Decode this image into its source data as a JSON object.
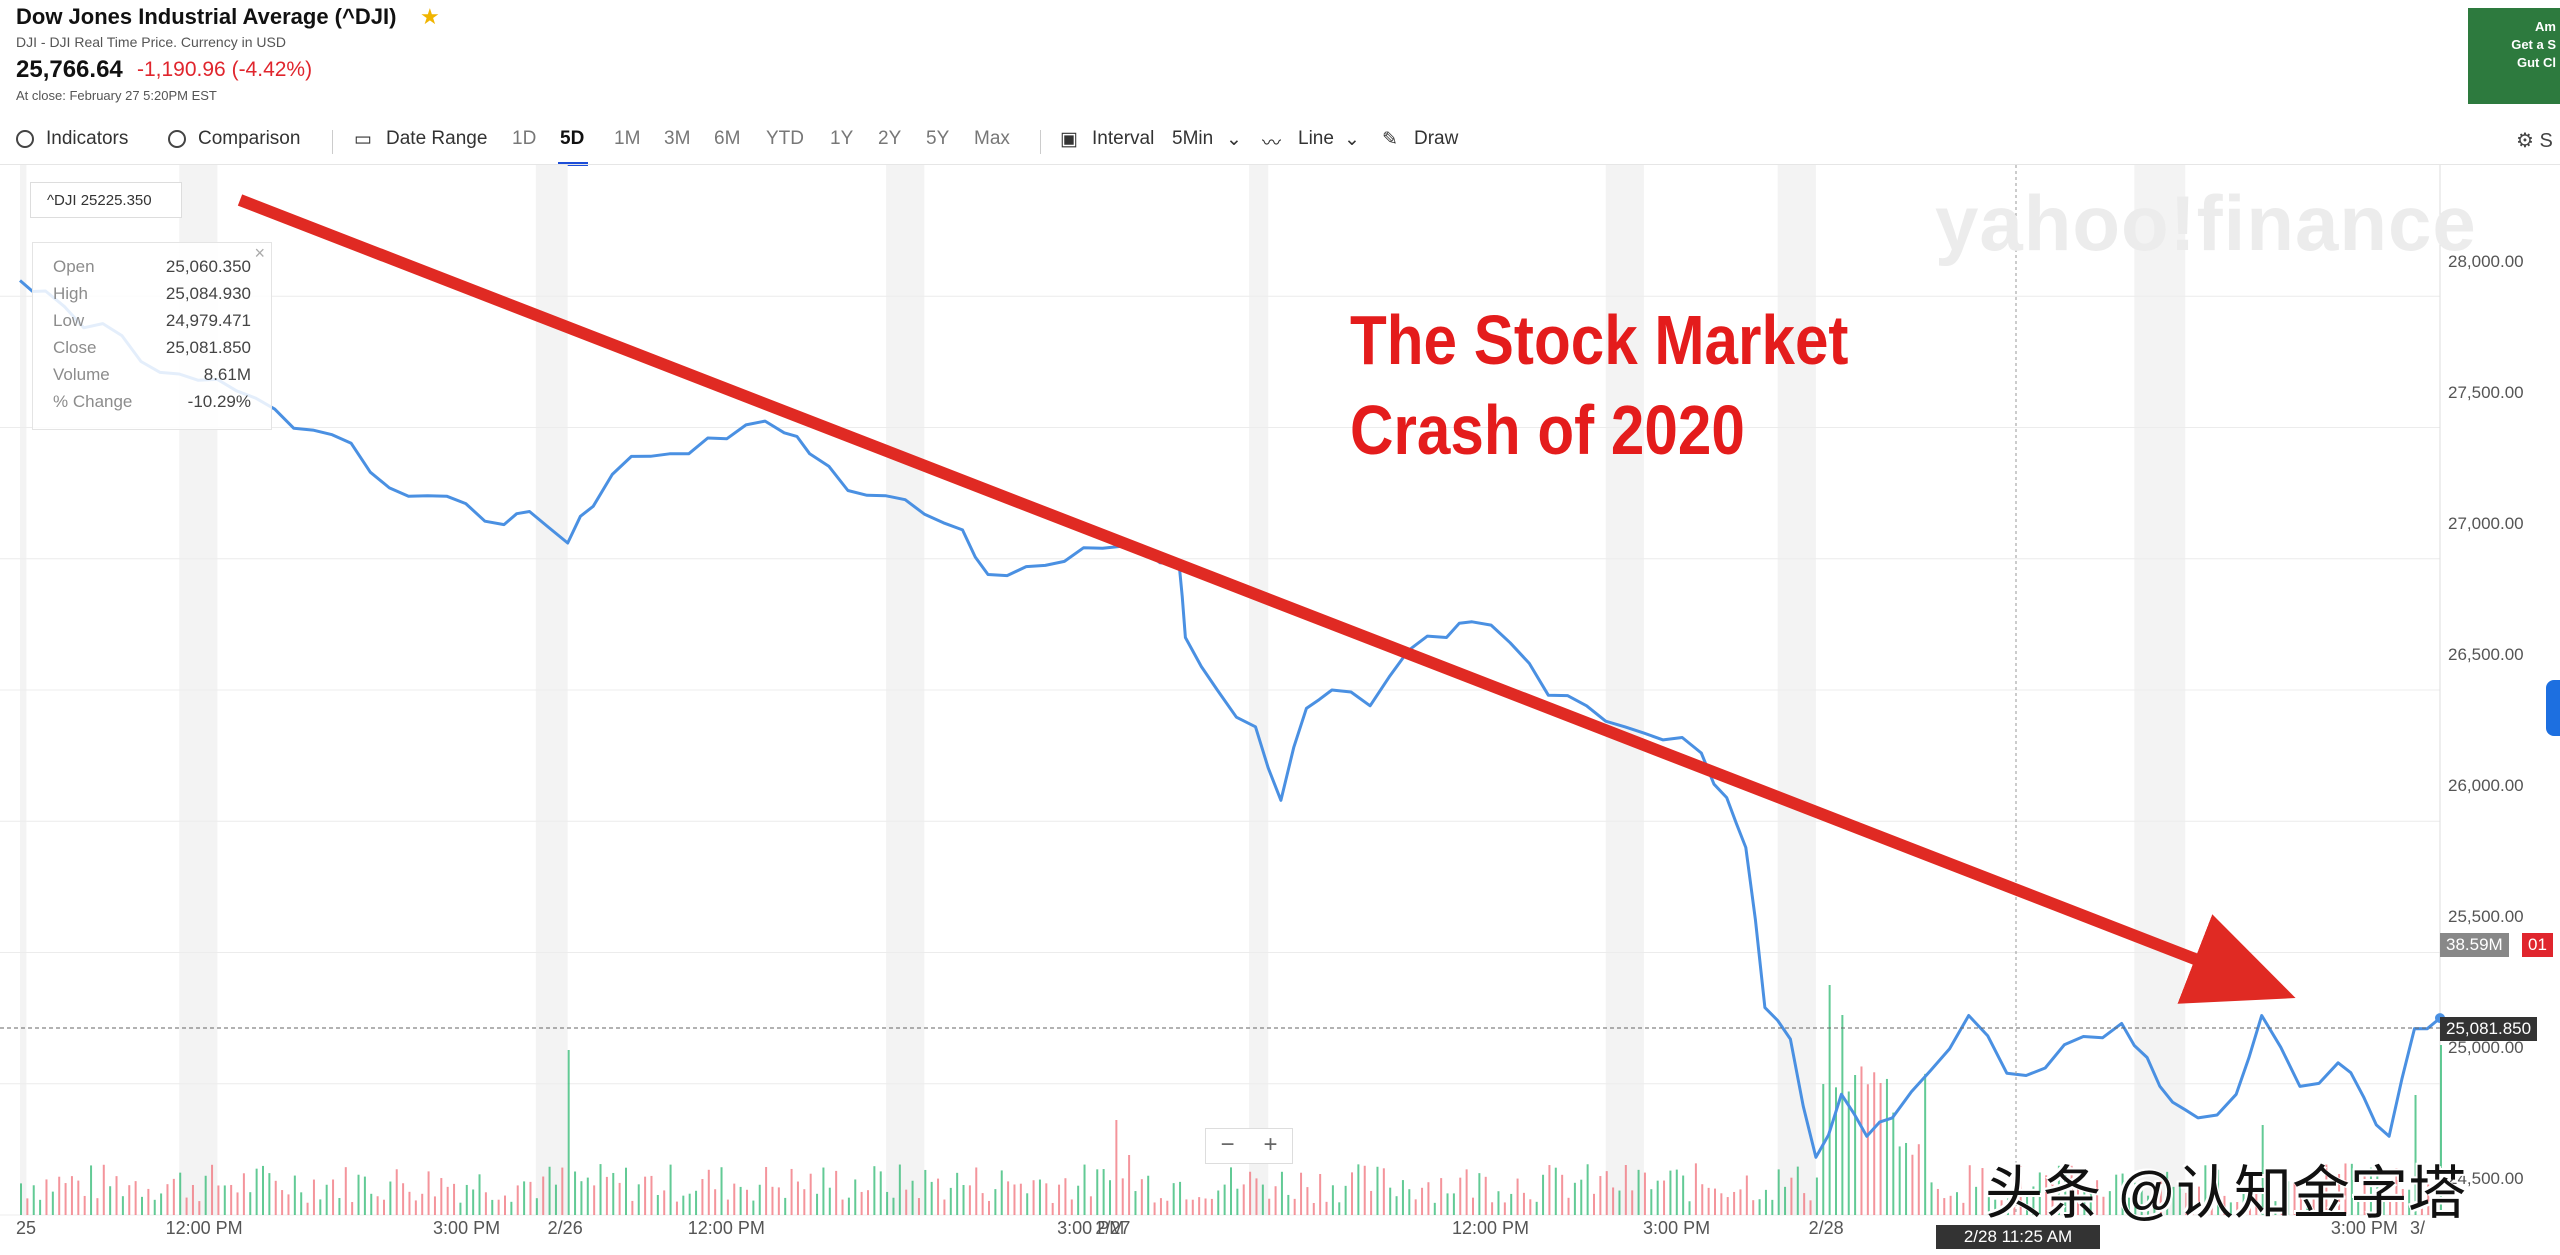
{
  "header": {
    "title": "Dow Jones Industrial Average (^DJI)",
    "subtitle": "DJI - DJI Real Time Price. Currency in USD",
    "price": "25,766.64",
    "change": "-1,190.96 (-4.42%)",
    "close_note": "At close: February 27 5:20PM EST"
  },
  "ad": {
    "line1": "Am",
    "line2": "Get a S",
    "line3": "Gut Cl"
  },
  "toolbar": {
    "indicators": "Indicators",
    "comparison": "Comparison",
    "date_range": "Date Range",
    "ranges": [
      "1D",
      "5D",
      "1M",
      "3M",
      "6M",
      "YTD",
      "1Y",
      "2Y",
      "5Y",
      "Max"
    ],
    "active_range": "5D",
    "interval_label": "Interval",
    "interval_value": "5Min",
    "line": "Line",
    "draw": "Draw",
    "settings": "S"
  },
  "legend": {
    "label": "^DJI 25225.350"
  },
  "ohlc": {
    "rows": [
      {
        "k": "Open",
        "v": "25,060.350"
      },
      {
        "k": "High",
        "v": "25,084.930"
      },
      {
        "k": "Low",
        "v": "24,979.471"
      },
      {
        "k": "Close",
        "v": "25,081.850"
      },
      {
        "k": "Volume",
        "v": "8.61M"
      },
      {
        "k": "% Change",
        "v": "-10.29%"
      }
    ]
  },
  "watermark": "yahoo!finance",
  "annotation": {
    "line1": "The Stock Market",
    "line2": "Crash of 2020"
  },
  "y_tags": {
    "volume": "38.59M",
    "price": "25,081.850",
    "partial": "01"
  },
  "time_tag": "2/28 11:25 AM",
  "zoom": {
    "minus": "−",
    "plus": "+"
  },
  "toutiao_watermark": "头条 @认知金字塔",
  "colors": {
    "line": "#4a90e2",
    "arrow": "#e02a23",
    "vol_up": "#2eb872",
    "vol_down": "#f0707a"
  },
  "chart_data": {
    "type": "line",
    "title": "",
    "xlabel": "",
    "ylabel": "",
    "ylim": [
      24500,
      28500
    ],
    "y_ticks": [
      "28,000.00",
      "27,500.00",
      "27,000.00",
      "26,500.00",
      "26,000.00",
      "25,500.00",
      "25,000.00",
      "24,500.00"
    ],
    "y_tick_values": [
      28000,
      27500,
      27000,
      26500,
      26000,
      25500,
      25000,
      24500
    ],
    "x_ticks": [
      "25",
      "12:00 PM",
      "3:00 PM",
      "2/26",
      "12:00 PM",
      "3:00 PM",
      "2/27",
      "12:00 PM",
      "3:00 PM",
      "2/28",
      "3:00 PM",
      "3/"
    ],
    "x_tick_pos": [
      0,
      13,
      34,
      43,
      54,
      83,
      86,
      114,
      129,
      142,
      183,
      190
    ],
    "x_range": [
      0,
      190
    ],
    "series": [
      {
        "values": [
          [
            0,
            28060
          ],
          [
            2,
            28020
          ],
          [
            5,
            27880
          ],
          [
            8,
            27850
          ],
          [
            11,
            27710
          ],
          [
            14,
            27680
          ],
          [
            17,
            27640
          ],
          [
            20,
            27570
          ],
          [
            23,
            27490
          ],
          [
            26,
            27440
          ],
          [
            29,
            27270
          ],
          [
            32,
            27240
          ],
          [
            35,
            27210
          ],
          [
            38,
            27130
          ],
          [
            40,
            27180
          ],
          [
            43,
            27060
          ],
          [
            45,
            27200
          ],
          [
            48,
            27390
          ],
          [
            51,
            27400
          ],
          [
            54,
            27460
          ],
          [
            57,
            27510
          ],
          [
            60,
            27480
          ],
          [
            62,
            27400
          ],
          [
            65,
            27260
          ],
          [
            68,
            27240
          ],
          [
            71,
            27170
          ],
          [
            74,
            27110
          ],
          [
            76,
            26940
          ],
          [
            79,
            26970
          ],
          [
            82,
            26990
          ],
          [
            85,
            27040
          ],
          [
            88,
            27040
          ],
          [
            91,
            26980
          ],
          [
            91.5,
            26700
          ],
          [
            94,
            26500
          ],
          [
            97,
            26360
          ],
          [
            99,
            26080
          ],
          [
            101,
            26430
          ],
          [
            103,
            26500
          ],
          [
            106,
            26440
          ],
          [
            109,
            26650
          ],
          [
            112,
            26700
          ],
          [
            114,
            26760
          ],
          [
            117,
            26680
          ],
          [
            120,
            26480
          ],
          [
            123,
            26440
          ],
          [
            126,
            26360
          ],
          [
            129,
            26310
          ],
          [
            132,
            26260
          ],
          [
            134,
            26090
          ],
          [
            135.5,
            25900
          ],
          [
            137,
            25290
          ],
          [
            139,
            25170
          ],
          [
            141,
            24720
          ],
          [
            143,
            24960
          ],
          [
            145,
            24800
          ],
          [
            147,
            24870
          ],
          [
            150,
            25050
          ],
          [
            153,
            25260
          ],
          [
            156,
            25040
          ],
          [
            159,
            25060
          ],
          [
            162,
            25180
          ],
          [
            165,
            25230
          ],
          [
            167,
            25100
          ],
          [
            169,
            24930
          ],
          [
            171,
            24870
          ],
          [
            174,
            24960
          ],
          [
            176,
            25260
          ],
          [
            179,
            24990
          ],
          [
            182,
            25080
          ],
          [
            184,
            24950
          ],
          [
            186,
            24800
          ],
          [
            188,
            25210
          ],
          [
            190,
            25250
          ]
        ]
      }
    ],
    "volume": {
      "units": "relative",
      "pattern": "sparse bars along bottom; spikes near 2/26, 2/27 open, 2/28 open"
    }
  }
}
